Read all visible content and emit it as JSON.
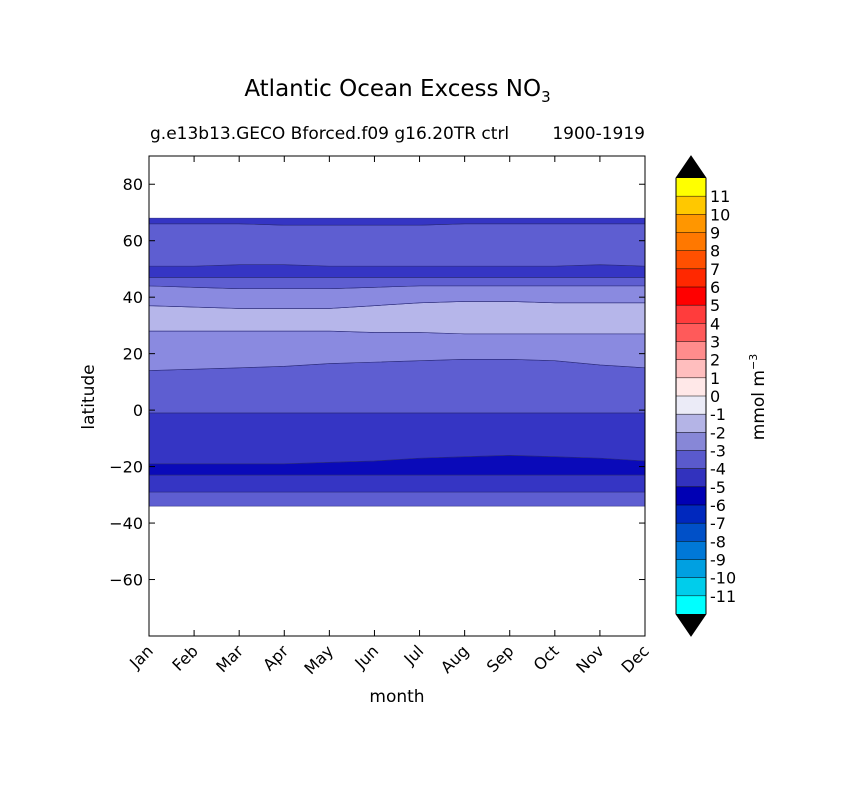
{
  "chart_data": {
    "type": "contourf",
    "title": "Atlantic Ocean Excess NO",
    "title_subscript": "3",
    "subtitle_left": "g.e13b13.GECO Bforced.f09 g16.20TR ctrl",
    "subtitle_right": "1900-1919",
    "xlabel": "month",
    "ylabel": "latitude",
    "x_categories": [
      "Jan",
      "Feb",
      "Mar",
      "Apr",
      "May",
      "Jun",
      "Jul",
      "Aug",
      "Sep",
      "Oct",
      "Nov",
      "Dec"
    ],
    "ylim": [
      -80,
      90
    ],
    "y_ticks": [
      "80",
      "60",
      "40",
      "20",
      "0",
      "−20",
      "−40",
      "−60"
    ],
    "y_tick_values": [
      80,
      60,
      40,
      20,
      0,
      -20,
      -40,
      -60
    ],
    "data_extent_lat": [
      -34,
      68
    ],
    "bands": [
      {
        "from": [
          -34,
          -34,
          -34,
          -34,
          -34,
          -34,
          -34,
          -34,
          -34,
          -34,
          -34,
          -34
        ],
        "to": [
          -29,
          -29,
          -29,
          -29,
          -29,
          -29,
          -29,
          -29,
          -29,
          -29,
          -29,
          -29
        ],
        "value": -3.5
      },
      {
        "from": [
          -29,
          -29,
          -29,
          -29,
          -29,
          -29,
          -29,
          -29,
          -29,
          -29,
          -29,
          -29
        ],
        "to": [
          -23,
          -23,
          -23,
          -23,
          -23,
          -23,
          -23,
          -23,
          -23,
          -23,
          -23,
          -23
        ],
        "value": -4.5
      },
      {
        "from": [
          -23,
          -23,
          -23,
          -23,
          -23,
          -23,
          -23,
          -23,
          -23,
          -23,
          -23,
          -23
        ],
        "to": [
          -19,
          -19,
          -19,
          -19,
          -18.5,
          -18,
          -17,
          -16.5,
          -16,
          -16.5,
          -17,
          -18
        ],
        "value": -5.5
      },
      {
        "from": [
          -19,
          -19,
          -19,
          -19,
          -18.5,
          -18,
          -17,
          -16.5,
          -16,
          -16.5,
          -17,
          -18
        ],
        "to": [
          -1,
          -1,
          -1,
          -1,
          -1,
          -1,
          -1,
          -1,
          -1,
          -1,
          -1,
          -1
        ],
        "value": -4.5
      },
      {
        "from": [
          -1,
          -1,
          -1,
          -1,
          -1,
          -1,
          -1,
          -1,
          -1,
          -1,
          -1,
          -1
        ],
        "to": [
          14,
          14.5,
          15,
          15.5,
          16.5,
          17,
          17.5,
          18,
          18,
          17.5,
          16,
          15
        ],
        "value": -3.5
      },
      {
        "from": [
          14,
          14.5,
          15,
          15.5,
          16.5,
          17,
          17.5,
          18,
          18,
          17.5,
          16,
          15
        ],
        "to": [
          28,
          28,
          28,
          28,
          28,
          27.5,
          27.5,
          27,
          27,
          27,
          27,
          27
        ],
        "value": -2.5
      },
      {
        "from": [
          28,
          28,
          28,
          28,
          28,
          27.5,
          27.5,
          27,
          27,
          27,
          27,
          27
        ],
        "to": [
          37,
          36.5,
          36,
          36,
          36,
          37,
          38,
          38.5,
          38.5,
          38,
          38,
          38
        ],
        "value": -1.5
      },
      {
        "from": [
          37,
          36.5,
          36,
          36,
          36,
          37,
          38,
          38.5,
          38.5,
          38,
          38,
          38
        ],
        "to": [
          44,
          43.5,
          43,
          43,
          43,
          43.5,
          44,
          44,
          44,
          44,
          44,
          44
        ],
        "value": -2.5
      },
      {
        "from": [
          44,
          43.5,
          43,
          43,
          43,
          43.5,
          44,
          44,
          44,
          44,
          44,
          44
        ],
        "to": [
          47,
          47,
          47,
          47,
          47,
          47,
          47,
          47,
          47,
          47,
          47,
          47
        ],
        "value": -3.5
      },
      {
        "from": [
          47,
          47,
          47,
          47,
          47,
          47,
          47,
          47,
          47,
          47,
          47,
          47
        ],
        "to": [
          51,
          51,
          51.5,
          51.5,
          51,
          51,
          51,
          51,
          51,
          51,
          51.5,
          51
        ],
        "value": -4.5
      },
      {
        "from": [
          51,
          51,
          51.5,
          51.5,
          51,
          51,
          51,
          51,
          51,
          51,
          51.5,
          51
        ],
        "to": [
          66,
          66,
          66,
          65.5,
          65.5,
          65.5,
          65.5,
          66,
          66,
          66,
          66,
          66
        ],
        "value": -3.5
      },
      {
        "from": [
          66,
          66,
          66,
          65.5,
          65.5,
          65.5,
          65.5,
          66,
          66,
          66,
          66,
          66
        ],
        "to": [
          68,
          68,
          68,
          68,
          68,
          68,
          68,
          68,
          68,
          68,
          68,
          68
        ],
        "value": -4.5
      }
    ],
    "colorbar": {
      "label": "mmol m",
      "label_superscript": "−3",
      "levels": [
        "11",
        "10",
        "9",
        "8",
        "7",
        "6",
        "5",
        "4",
        "3",
        "2",
        "1",
        "0",
        "-1",
        "-2",
        "-3",
        "-4",
        "-5",
        "-6",
        "-7",
        "-8",
        "-9",
        "-10",
        "-11"
      ],
      "colors": [
        "#ffff00",
        "#ffc800",
        "#ff9600",
        "#ff7800",
        "#ff5000",
        "#ff2800",
        "#ff0000",
        "#ff3c3c",
        "#ff5a5a",
        "#ff8c8c",
        "#ffbebe",
        "#ffe8e8",
        "#ebebf7",
        "#b4b4e6",
        "#8787d7",
        "#5a5acd",
        "#3232be",
        "#0000b4",
        "#0028be",
        "#0050c8",
        "#0078d7",
        "#00a0e1",
        "#00cdeb",
        "#00ffff"
      ],
      "extend_colors": [
        "#000000",
        "#000000"
      ]
    },
    "value_colors": {
      "-5.5": "#0a0ab9",
      "-4.5": "#3535c4",
      "-3.5": "#5e5ed1",
      "-2.5": "#8a8ae0",
      "-1.5": "#b6b6ea"
    }
  }
}
